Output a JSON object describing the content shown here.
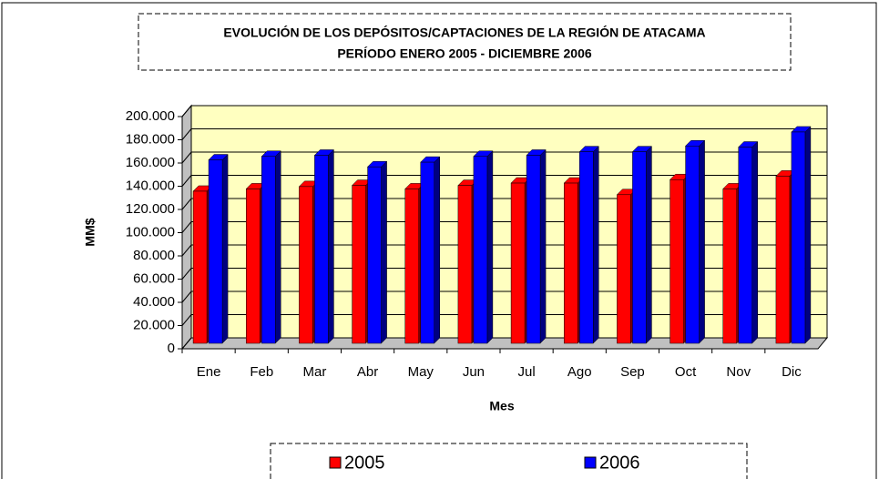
{
  "chart_data": {
    "type": "bar",
    "title": "EVOLUCIÓN DE LOS DEPÓSITOS/CAPTACIONES DE LA REGIÓN DE ATACAMA",
    "subtitle": "PERÍODO ENERO 2005 - DICIEMBRE 2006",
    "x_label": "Mes",
    "y_label": "MM$",
    "categories": [
      "Ene",
      "Feb",
      "Mar",
      "Abr",
      "May",
      "Jun",
      "Jul",
      "Ago",
      "Sep",
      "Oct",
      "Nov",
      "Dic"
    ],
    "series": [
      {
        "name": "2005",
        "color": "#ff0000",
        "values": [
          131000,
          133000,
          135000,
          136000,
          133000,
          136000,
          138000,
          138000,
          128000,
          141000,
          133000,
          144000
        ]
      },
      {
        "name": "2006",
        "color": "#0000ff",
        "values": [
          158000,
          161000,
          162000,
          152000,
          156000,
          161000,
          162000,
          165000,
          165000,
          170000,
          169000,
          182000
        ]
      }
    ],
    "ylim": [
      0,
      200000
    ],
    "yticks": [
      0,
      {
        "value": 20000,
        "label": "20.000"
      },
      {
        "value": 40000,
        "label": "40.000"
      },
      {
        "value": 60000,
        "label": "60.000"
      },
      {
        "value": 80000,
        "label": "80.000"
      },
      {
        "value": 100000,
        "label": "100.000"
      },
      {
        "value": 120000,
        "label": "120.000"
      },
      {
        "value": 140000,
        "label": "140.000"
      },
      {
        "value": 160000,
        "label": "160.000"
      },
      {
        "value": 180000,
        "label": "180.000"
      },
      {
        "value": 200000,
        "label": "200.000"
      }
    ],
    "grid": true,
    "legend": "bottom"
  }
}
